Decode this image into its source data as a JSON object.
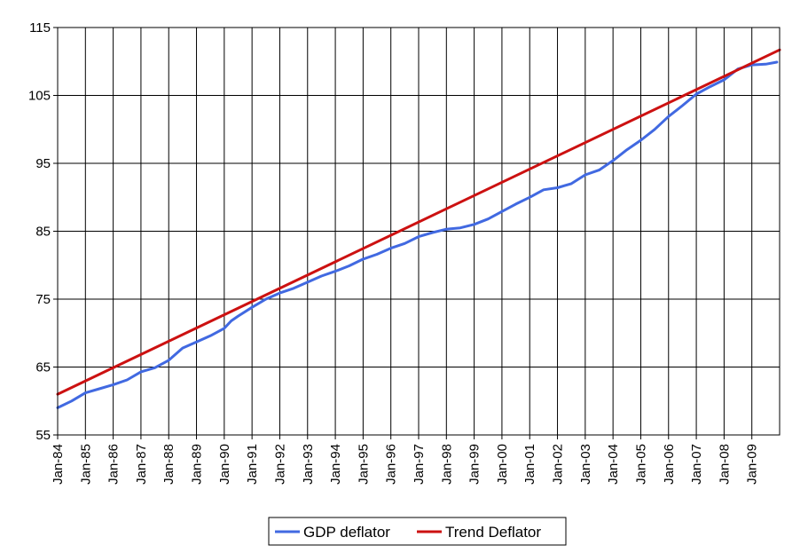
{
  "chart_data": {
    "type": "line",
    "title": "",
    "xlabel": "",
    "ylabel": "",
    "ylim": [
      55,
      115
    ],
    "yticks": [
      55,
      65,
      75,
      85,
      95,
      105,
      115
    ],
    "xlim": [
      1984.0,
      2010.0
    ],
    "xtick_labels": [
      "Jan-84",
      "Jan-85",
      "Jan-86",
      "Jan-87",
      "Jan-88",
      "Jan-89",
      "Jan-90",
      "Jan-91",
      "Jan-92",
      "Jan-93",
      "Jan-94",
      "Jan-95",
      "Jan-96",
      "Jan-97",
      "Jan-98",
      "Jan-99",
      "Jan-00",
      "Jan-01",
      "Jan-02",
      "Jan-03",
      "Jan-04",
      "Jan-05",
      "Jan-06",
      "Jan-07",
      "Jan-08",
      "Jan-09"
    ],
    "grid": true,
    "legend_position": "bottom",
    "series": [
      {
        "name": "GDP deflator",
        "color": "#4169e1",
        "x": [
          1984.0,
          1984.5,
          1985.0,
          1985.5,
          1986.0,
          1986.5,
          1987.0,
          1987.5,
          1988.0,
          1988.5,
          1989.0,
          1989.5,
          1990.0,
          1990.25,
          1990.5,
          1991.0,
          1991.5,
          1992.0,
          1992.5,
          1993.0,
          1993.5,
          1994.0,
          1994.5,
          1995.0,
          1995.5,
          1996.0,
          1996.5,
          1997.0,
          1997.5,
          1998.0,
          1998.5,
          1999.0,
          1999.5,
          2000.0,
          2000.5,
          2001.0,
          2001.5,
          2002.0,
          2002.5,
          2003.0,
          2003.5,
          2004.0,
          2004.5,
          2005.0,
          2005.5,
          2006.0,
          2006.5,
          2007.0,
          2007.5,
          2008.0,
          2008.5,
          2009.0,
          2009.5,
          2009.9
        ],
        "values": [
          59.0,
          60.0,
          61.2,
          61.8,
          62.4,
          63.1,
          64.3,
          64.9,
          66.0,
          67.8,
          68.7,
          69.6,
          70.7,
          71.8,
          72.5,
          73.8,
          75.0,
          75.9,
          76.6,
          77.5,
          78.4,
          79.1,
          79.9,
          80.9,
          81.6,
          82.5,
          83.2,
          84.2,
          84.8,
          85.3,
          85.5,
          86.0,
          86.8,
          87.9,
          89.0,
          90.0,
          91.1,
          91.4,
          92.0,
          93.3,
          94.0,
          95.4,
          97.0,
          98.4,
          100.0,
          101.9,
          103.5,
          105.2,
          106.3,
          107.3,
          108.9,
          109.5,
          109.6,
          109.9
        ]
      },
      {
        "name": "Trend Deflator",
        "color": "#cc1111",
        "x": [
          1984.0,
          2010.0
        ],
        "values": [
          61.0,
          111.7
        ]
      }
    ]
  }
}
